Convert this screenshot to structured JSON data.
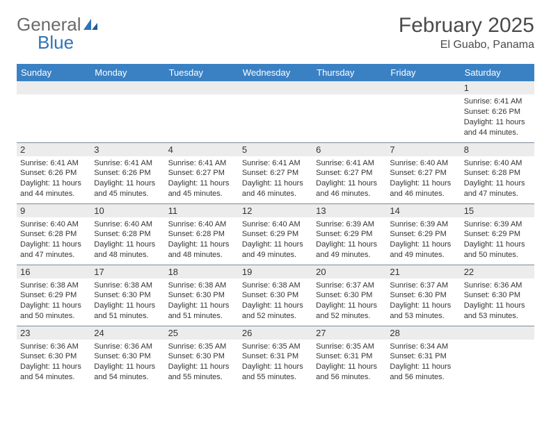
{
  "logo": {
    "part1": "General",
    "part2": "Blue"
  },
  "header": {
    "month_year": "February 2025",
    "location": "El Guabo, Panama"
  },
  "colors": {
    "header_bar": "#3a81c4",
    "daynum_bg": "#ececec",
    "row_border": "#7b8a99",
    "logo_gray": "#6a6a6a",
    "logo_blue": "#2f74b5",
    "text": "#333333"
  },
  "day_headers": [
    "Sunday",
    "Monday",
    "Tuesday",
    "Wednesday",
    "Thursday",
    "Friday",
    "Saturday"
  ],
  "weeks": [
    [
      {
        "n": "",
        "lines": []
      },
      {
        "n": "",
        "lines": []
      },
      {
        "n": "",
        "lines": []
      },
      {
        "n": "",
        "lines": []
      },
      {
        "n": "",
        "lines": []
      },
      {
        "n": "",
        "lines": []
      },
      {
        "n": "1",
        "lines": [
          "Sunrise: 6:41 AM",
          "Sunset: 6:26 PM",
          "Daylight: 11 hours and 44 minutes."
        ]
      }
    ],
    [
      {
        "n": "2",
        "lines": [
          "Sunrise: 6:41 AM",
          "Sunset: 6:26 PM",
          "Daylight: 11 hours and 44 minutes."
        ]
      },
      {
        "n": "3",
        "lines": [
          "Sunrise: 6:41 AM",
          "Sunset: 6:26 PM",
          "Daylight: 11 hours and 45 minutes."
        ]
      },
      {
        "n": "4",
        "lines": [
          "Sunrise: 6:41 AM",
          "Sunset: 6:27 PM",
          "Daylight: 11 hours and 45 minutes."
        ]
      },
      {
        "n": "5",
        "lines": [
          "Sunrise: 6:41 AM",
          "Sunset: 6:27 PM",
          "Daylight: 11 hours and 46 minutes."
        ]
      },
      {
        "n": "6",
        "lines": [
          "Sunrise: 6:41 AM",
          "Sunset: 6:27 PM",
          "Daylight: 11 hours and 46 minutes."
        ]
      },
      {
        "n": "7",
        "lines": [
          "Sunrise: 6:40 AM",
          "Sunset: 6:27 PM",
          "Daylight: 11 hours and 46 minutes."
        ]
      },
      {
        "n": "8",
        "lines": [
          "Sunrise: 6:40 AM",
          "Sunset: 6:28 PM",
          "Daylight: 11 hours and 47 minutes."
        ]
      }
    ],
    [
      {
        "n": "9",
        "lines": [
          "Sunrise: 6:40 AM",
          "Sunset: 6:28 PM",
          "Daylight: 11 hours and 47 minutes."
        ]
      },
      {
        "n": "10",
        "lines": [
          "Sunrise: 6:40 AM",
          "Sunset: 6:28 PM",
          "Daylight: 11 hours and 48 minutes."
        ]
      },
      {
        "n": "11",
        "lines": [
          "Sunrise: 6:40 AM",
          "Sunset: 6:28 PM",
          "Daylight: 11 hours and 48 minutes."
        ]
      },
      {
        "n": "12",
        "lines": [
          "Sunrise: 6:40 AM",
          "Sunset: 6:29 PM",
          "Daylight: 11 hours and 49 minutes."
        ]
      },
      {
        "n": "13",
        "lines": [
          "Sunrise: 6:39 AM",
          "Sunset: 6:29 PM",
          "Daylight: 11 hours and 49 minutes."
        ]
      },
      {
        "n": "14",
        "lines": [
          "Sunrise: 6:39 AM",
          "Sunset: 6:29 PM",
          "Daylight: 11 hours and 49 minutes."
        ]
      },
      {
        "n": "15",
        "lines": [
          "Sunrise: 6:39 AM",
          "Sunset: 6:29 PM",
          "Daylight: 11 hours and 50 minutes."
        ]
      }
    ],
    [
      {
        "n": "16",
        "lines": [
          "Sunrise: 6:38 AM",
          "Sunset: 6:29 PM",
          "Daylight: 11 hours and 50 minutes."
        ]
      },
      {
        "n": "17",
        "lines": [
          "Sunrise: 6:38 AM",
          "Sunset: 6:30 PM",
          "Daylight: 11 hours and 51 minutes."
        ]
      },
      {
        "n": "18",
        "lines": [
          "Sunrise: 6:38 AM",
          "Sunset: 6:30 PM",
          "Daylight: 11 hours and 51 minutes."
        ]
      },
      {
        "n": "19",
        "lines": [
          "Sunrise: 6:38 AM",
          "Sunset: 6:30 PM",
          "Daylight: 11 hours and 52 minutes."
        ]
      },
      {
        "n": "20",
        "lines": [
          "Sunrise: 6:37 AM",
          "Sunset: 6:30 PM",
          "Daylight: 11 hours and 52 minutes."
        ]
      },
      {
        "n": "21",
        "lines": [
          "Sunrise: 6:37 AM",
          "Sunset: 6:30 PM",
          "Daylight: 11 hours and 53 minutes."
        ]
      },
      {
        "n": "22",
        "lines": [
          "Sunrise: 6:36 AM",
          "Sunset: 6:30 PM",
          "Daylight: 11 hours and 53 minutes."
        ]
      }
    ],
    [
      {
        "n": "23",
        "lines": [
          "Sunrise: 6:36 AM",
          "Sunset: 6:30 PM",
          "Daylight: 11 hours and 54 minutes."
        ]
      },
      {
        "n": "24",
        "lines": [
          "Sunrise: 6:36 AM",
          "Sunset: 6:30 PM",
          "Daylight: 11 hours and 54 minutes."
        ]
      },
      {
        "n": "25",
        "lines": [
          "Sunrise: 6:35 AM",
          "Sunset: 6:30 PM",
          "Daylight: 11 hours and 55 minutes."
        ]
      },
      {
        "n": "26",
        "lines": [
          "Sunrise: 6:35 AM",
          "Sunset: 6:31 PM",
          "Daylight: 11 hours and 55 minutes."
        ]
      },
      {
        "n": "27",
        "lines": [
          "Sunrise: 6:35 AM",
          "Sunset: 6:31 PM",
          "Daylight: 11 hours and 56 minutes."
        ]
      },
      {
        "n": "28",
        "lines": [
          "Sunrise: 6:34 AM",
          "Sunset: 6:31 PM",
          "Daylight: 11 hours and 56 minutes."
        ]
      },
      {
        "n": "",
        "lines": []
      }
    ]
  ]
}
